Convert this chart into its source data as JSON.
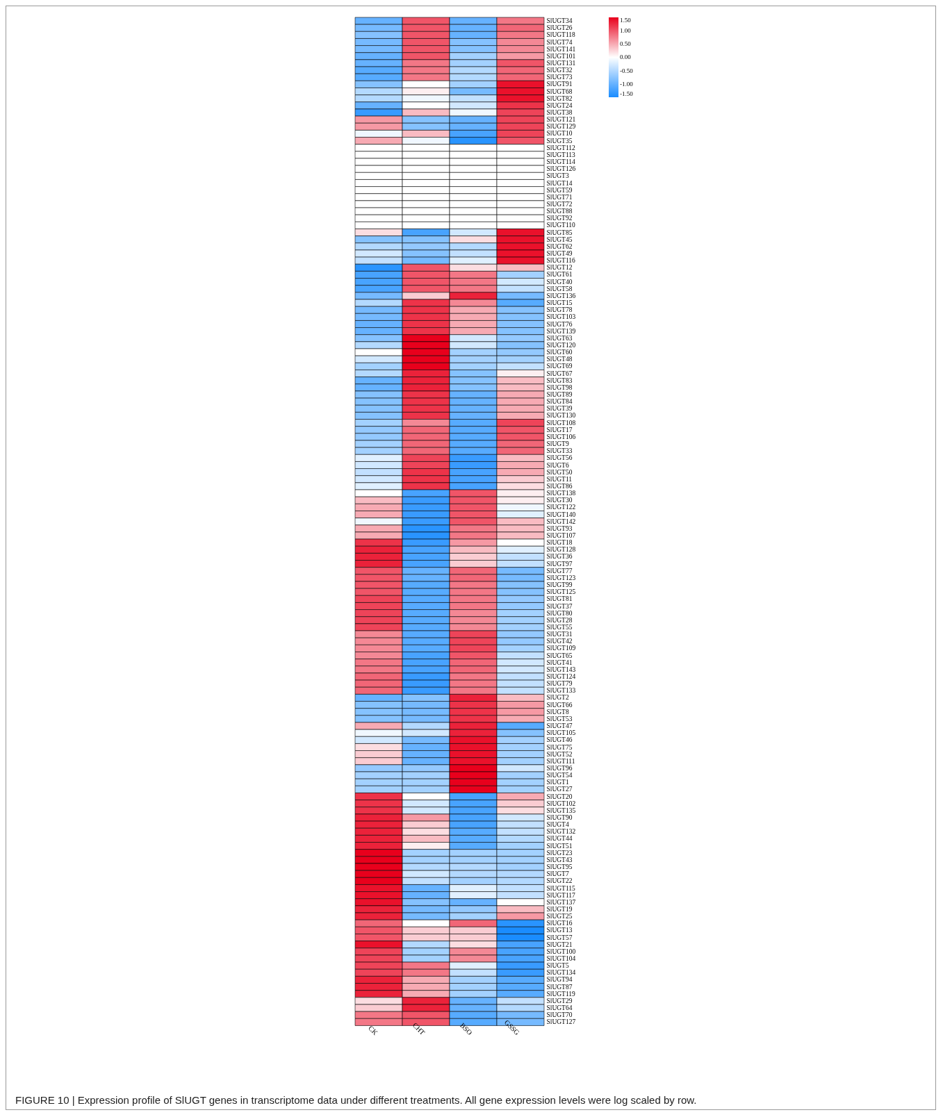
{
  "chart_data": {
    "type": "heatmap",
    "categories": [
      "CK",
      "CHT",
      "BSO",
      "GSSG"
    ],
    "y_categories": [
      "SlUGT34",
      "SlUGT26",
      "SlUGT118",
      "SlUGT74",
      "SlUGT141",
      "SlUGT101",
      "SlUGT131",
      "SlUGT32",
      "SlUGT73",
      "SlUGT91",
      "SlUGT68",
      "SlUGT82",
      "SlUGT24",
      "SlUGT38",
      "SlUGT121",
      "SlUGT129",
      "SlUGT10",
      "SlUGT35",
      "SlUGT112",
      "SlUGT113",
      "SlUGT114",
      "SlUGT126",
      "SlUGT3",
      "SlUGT14",
      "SlUGT59",
      "SlUGT71",
      "SlUGT72",
      "SlUGT88",
      "SlUGT92",
      "SlUGT110",
      "SlUGT85",
      "SlUGT45",
      "SlUGT62",
      "SlUGT49",
      "SlUGT116",
      "SlUGT12",
      "SlUGT61",
      "SlUGT40",
      "SlUGT58",
      "SlUGT136",
      "SlUGT15",
      "SlUGT78",
      "SlUGT103",
      "SlUGT76",
      "SlUGT139",
      "SlUGT63",
      "SlUGT120",
      "SlUGT60",
      "SlUGT48",
      "SlUGT69",
      "SlUGT67",
      "SlUGT83",
      "SlUGT98",
      "SlUGT89",
      "SlUGT84",
      "SlUGT39",
      "SlUGT130",
      "SlUGT108",
      "SlUGT17",
      "SlUGT106",
      "SlUGT9",
      "SlUGT33",
      "SlUGT56",
      "SlUGT6",
      "SlUGT50",
      "SlUGT11",
      "SlUGT86",
      "SlUGT138",
      "SlUGT30",
      "SlUGT122",
      "SlUGT140",
      "SlUGT142",
      "SlUGT93",
      "SlUGT107",
      "SlUGT18",
      "SlUGT128",
      "SlUGT36",
      "SlUGT97",
      "SlUGT77",
      "SlUGT123",
      "SlUGT99",
      "SlUGT125",
      "SlUGT81",
      "SlUGT37",
      "SlUGT80",
      "SlUGT28",
      "SlUGT55",
      "SlUGT31",
      "SlUGT42",
      "SlUGT109",
      "SlUGT65",
      "SlUGT41",
      "SlUGT143",
      "SlUGT124",
      "SlUGT79",
      "SlUGT133",
      "SlUGT2",
      "SlUGT66",
      "SlUGT8",
      "SlUGT53",
      "SlUGT47",
      "SlUGT105",
      "SlUGT46",
      "SlUGT75",
      "SlUGT52",
      "SlUGT111",
      "SlUGT96",
      "SlUGT54",
      "SlUGT1",
      "SlUGT27",
      "SlUGT20",
      "SlUGT102",
      "SlUGT135",
      "SlUGT90",
      "SlUGT4",
      "SlUGT132",
      "SlUGT44",
      "SlUGT51",
      "SlUGT23",
      "SlUGT43",
      "SlUGT95",
      "SlUGT7",
      "SlUGT22",
      "SlUGT115",
      "SlUGT117",
      "SlUGT137",
      "SlUGT19",
      "SlUGT25",
      "SlUGT16",
      "SlUGT13",
      "SlUGT57",
      "SlUGT21",
      "SlUGT100",
      "SlUGT104",
      "SlUGT5",
      "SlUGT134",
      "SlUGT94",
      "SlUGT87",
      "SlUGT119",
      "SlUGT29",
      "SlUGT64",
      "SlUGT70",
      "SlUGT127"
    ],
    "cells": [
      [
        -1.0,
        1.0,
        -1.0,
        0.8
      ],
      [
        -0.9,
        1.0,
        -1.0,
        0.9
      ],
      [
        -0.8,
        1.0,
        -1.0,
        0.8
      ],
      [
        -0.9,
        1.0,
        -0.8,
        0.7
      ],
      [
        -0.9,
        1.0,
        -0.8,
        0.7
      ],
      [
        -1.0,
        1.0,
        -0.6,
        0.6
      ],
      [
        -1.0,
        0.8,
        -0.6,
        1.0
      ],
      [
        -1.1,
        0.8,
        -0.5,
        0.9
      ],
      [
        -1.1,
        0.8,
        -0.5,
        0.9
      ],
      [
        -0.8,
        0.0,
        -0.6,
        1.4
      ],
      [
        -0.5,
        0.1,
        -0.9,
        1.4
      ],
      [
        -0.5,
        -0.1,
        -0.4,
        1.4
      ],
      [
        -1.0,
        0.0,
        -0.3,
        1.2
      ],
      [
        -1.3,
        0.4,
        -0.1,
        1.1
      ],
      [
        0.6,
        -0.8,
        -1.0,
        1.1
      ],
      [
        0.6,
        -0.8,
        -1.0,
        1.1
      ],
      [
        -0.1,
        0.4,
        -1.2,
        1.1
      ],
      [
        0.5,
        -0.1,
        -1.4,
        1.0
      ],
      [
        0,
        0,
        0,
        0
      ],
      [
        0,
        0,
        0,
        0
      ],
      [
        0,
        0,
        0,
        0
      ],
      [
        0,
        0,
        0,
        0
      ],
      [
        0,
        0,
        0,
        0
      ],
      [
        0,
        0,
        0,
        0
      ],
      [
        0,
        0,
        0,
        0
      ],
      [
        0,
        0,
        0,
        0
      ],
      [
        0,
        0,
        0,
        0
      ],
      [
        0,
        0,
        0,
        0
      ],
      [
        0,
        0,
        0,
        0
      ],
      [
        0,
        0,
        0,
        0
      ],
      [
        0.2,
        -1.2,
        -0.3,
        1.4
      ],
      [
        -0.8,
        -0.8,
        0.2,
        1.4
      ],
      [
        -0.5,
        -0.7,
        -0.5,
        1.4
      ],
      [
        -0.3,
        -0.8,
        -0.4,
        1.4
      ],
      [
        -0.4,
        -0.9,
        -0.2,
        1.4
      ],
      [
        -1.4,
        1.0,
        0.2,
        0.4
      ],
      [
        -1.2,
        1.0,
        0.8,
        -0.6
      ],
      [
        -1.2,
        1.0,
        0.8,
        -0.3
      ],
      [
        -1.2,
        1.0,
        0.8,
        -0.4
      ],
      [
        -0.9,
        0.3,
        1.3,
        -0.9
      ],
      [
        -0.5,
        1.2,
        0.7,
        -1.1
      ],
      [
        -0.9,
        1.2,
        0.5,
        -0.8
      ],
      [
        -0.9,
        1.2,
        0.5,
        -0.8
      ],
      [
        -1.0,
        1.2,
        0.5,
        -0.8
      ],
      [
        -1.0,
        1.2,
        0.5,
        -0.8
      ],
      [
        -0.8,
        1.5,
        -0.3,
        -0.7
      ],
      [
        -0.5,
        1.5,
        -0.3,
        -0.8
      ],
      [
        0.0,
        1.5,
        -0.6,
        -0.7
      ],
      [
        -0.3,
        1.5,
        -0.6,
        -0.6
      ],
      [
        -0.6,
        1.5,
        -0.6,
        -0.4
      ],
      [
        -0.5,
        1.3,
        -0.8,
        0.1
      ],
      [
        -1.0,
        1.3,
        -0.8,
        0.4
      ],
      [
        -1.0,
        1.3,
        -0.8,
        0.4
      ],
      [
        -0.8,
        1.2,
        -1.0,
        0.5
      ],
      [
        -0.8,
        1.2,
        -1.0,
        0.5
      ],
      [
        -0.8,
        1.2,
        -1.0,
        0.5
      ],
      [
        -0.8,
        1.2,
        -1.0,
        0.5
      ],
      [
        -0.6,
        0.7,
        -1.1,
        1.1
      ],
      [
        -0.7,
        0.9,
        -1.1,
        1.0
      ],
      [
        -0.7,
        0.9,
        -1.1,
        1.0
      ],
      [
        -0.6,
        0.9,
        -1.1,
        0.9
      ],
      [
        -0.6,
        0.9,
        -1.1,
        0.9
      ],
      [
        -0.2,
        1.1,
        -1.3,
        0.4
      ],
      [
        -0.3,
        1.1,
        -1.3,
        0.5
      ],
      [
        -0.4,
        1.2,
        -1.2,
        0.5
      ],
      [
        -0.3,
        1.2,
        -1.2,
        0.3
      ],
      [
        -0.2,
        1.2,
        -1.2,
        0.2
      ],
      [
        0.0,
        -1.2,
        1.0,
        0.1
      ],
      [
        0.4,
        -1.3,
        1.0,
        0.1
      ],
      [
        0.5,
        -1.3,
        1.0,
        -0.1
      ],
      [
        0.5,
        -1.3,
        1.0,
        -0.2
      ],
      [
        -0.1,
        -1.3,
        1.0,
        0.4
      ],
      [
        0.5,
        -1.4,
        0.8,
        0.4
      ],
      [
        0.5,
        -1.4,
        0.8,
        0.4
      ],
      [
        1.2,
        -1.3,
        0.6,
        0.0
      ],
      [
        1.3,
        -1.2,
        0.4,
        -0.2
      ],
      [
        1.3,
        -1.2,
        0.3,
        -0.4
      ],
      [
        1.3,
        -1.2,
        0.3,
        -0.4
      ],
      [
        1.0,
        -1.0,
        0.9,
        -0.9
      ],
      [
        1.0,
        -1.0,
        0.9,
        -0.9
      ],
      [
        1.0,
        -1.1,
        0.8,
        -0.8
      ],
      [
        1.0,
        -1.1,
        0.8,
        -0.8
      ],
      [
        1.1,
        -1.1,
        0.8,
        -0.7
      ],
      [
        1.1,
        -1.1,
        0.8,
        -0.7
      ],
      [
        1.1,
        -1.1,
        0.7,
        -0.6
      ],
      [
        1.1,
        -1.1,
        0.7,
        -0.6
      ],
      [
        1.1,
        -1.1,
        0.7,
        -0.6
      ],
      [
        0.7,
        -1.1,
        1.1,
        -0.7
      ],
      [
        0.7,
        -1.1,
        1.1,
        -0.7
      ],
      [
        0.7,
        -1.1,
        1.1,
        -0.6
      ],
      [
        0.7,
        -1.2,
        1.0,
        -0.4
      ],
      [
        0.8,
        -1.2,
        0.9,
        -0.3
      ],
      [
        0.8,
        -1.2,
        0.9,
        -0.3
      ],
      [
        0.9,
        -1.3,
        0.8,
        -0.4
      ],
      [
        0.9,
        -1.3,
        0.8,
        -0.4
      ],
      [
        0.9,
        -1.3,
        0.8,
        -0.4
      ],
      [
        -1.0,
        -0.8,
        1.3,
        0.4
      ],
      [
        -0.8,
        -0.9,
        1.2,
        0.6
      ],
      [
        -0.8,
        -0.9,
        1.2,
        0.6
      ],
      [
        -0.8,
        -0.9,
        1.2,
        0.5
      ],
      [
        0.5,
        -0.5,
        1.3,
        -1.1
      ],
      [
        -0.1,
        -0.3,
        1.3,
        -0.8
      ],
      [
        -0.3,
        -0.9,
        1.4,
        -0.6
      ],
      [
        0.2,
        -1.0,
        1.4,
        -0.6
      ],
      [
        0.3,
        -1.0,
        1.4,
        -0.6
      ],
      [
        0.3,
        -1.0,
        1.4,
        -0.6
      ],
      [
        -0.7,
        -0.7,
        1.5,
        -0.3
      ],
      [
        -0.6,
        -0.6,
        1.5,
        -0.6
      ],
      [
        -0.6,
        -0.6,
        1.5,
        -0.6
      ],
      [
        -0.6,
        -0.6,
        1.5,
        -0.6
      ],
      [
        1.2,
        0.0,
        -1.2,
        0.5
      ],
      [
        1.2,
        -0.3,
        -1.2,
        0.3
      ],
      [
        1.2,
        -0.3,
        -1.2,
        0.2
      ],
      [
        1.3,
        0.6,
        -1.2,
        -0.3
      ],
      [
        1.3,
        0.3,
        -1.2,
        -0.4
      ],
      [
        1.3,
        0.2,
        -1.1,
        -0.4
      ],
      [
        1.3,
        0.4,
        -1.1,
        -0.5
      ],
      [
        1.3,
        0.1,
        -1.1,
        -0.6
      ],
      [
        1.5,
        -0.6,
        -0.6,
        -0.6
      ],
      [
        1.5,
        -0.6,
        -0.6,
        -0.6
      ],
      [
        1.5,
        -0.5,
        -0.5,
        -0.6
      ],
      [
        1.5,
        -0.3,
        -0.5,
        -0.5
      ],
      [
        1.5,
        -0.4,
        -0.6,
        -0.5
      ],
      [
        1.4,
        -1.0,
        -0.2,
        -0.4
      ],
      [
        1.4,
        -1.0,
        -0.2,
        -0.4
      ],
      [
        1.4,
        -0.8,
        -1.0,
        0.0
      ],
      [
        1.3,
        -0.9,
        -0.7,
        0.4
      ],
      [
        1.3,
        -0.9,
        -0.6,
        0.6
      ],
      [
        0.9,
        0.0,
        0.9,
        -1.4
      ],
      [
        1.0,
        0.3,
        0.3,
        -1.5
      ],
      [
        1.0,
        0.3,
        0.3,
        -1.5
      ],
      [
        1.4,
        -0.5,
        0.2,
        -1.2
      ],
      [
        1.1,
        -0.6,
        0.7,
        -1.2
      ],
      [
        1.1,
        -0.6,
        0.7,
        -1.2
      ],
      [
        1.1,
        0.8,
        -0.2,
        -1.3
      ],
      [
        1.1,
        0.8,
        -0.4,
        -1.3
      ],
      [
        1.3,
        0.5,
        -0.6,
        -1.1
      ],
      [
        1.3,
        0.5,
        -0.6,
        -1.1
      ],
      [
        1.3,
        0.5,
        -0.6,
        -1.1
      ],
      [
        0.2,
        1.3,
        -1.0,
        -0.4
      ],
      [
        0.3,
        1.3,
        -1.0,
        -0.5
      ],
      [
        0.8,
        1.0,
        -1.1,
        -0.9
      ],
      [
        0.8,
        1.0,
        -1.1,
        -0.9
      ]
    ],
    "clim": [
      -1.5,
      1.5
    ],
    "cticks": [
      {
        "value": 1.5,
        "label": "1.50"
      },
      {
        "value": 1,
        "label": "1.00"
      },
      {
        "value": 0.5,
        "label": "0.50"
      },
      {
        "value": 0,
        "label": "0.00"
      },
      {
        "value": -0.5,
        "label": "-0.50"
      },
      {
        "value": -1,
        "label": "-1.00"
      },
      {
        "value": -1.5,
        "label": "-1.50"
      }
    ],
    "annotations": [
      "FIGURE 10 | Expression profile of SlUGT genes in transcriptome data under different treatments. All gene expression levels were log scaled by row."
    ]
  }
}
